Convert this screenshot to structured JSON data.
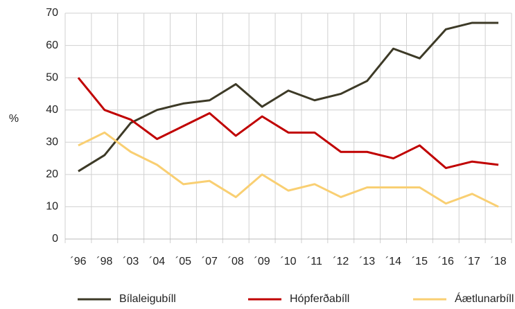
{
  "chart_data": {
    "type": "line",
    "y_label": "%",
    "categories": [
      "´96",
      "´98",
      "´03",
      "´04",
      "´05",
      "´07",
      "´08",
      "´09",
      "´10",
      "´11",
      "´12",
      "´13",
      "´14",
      "´15",
      "´16",
      "´17",
      "´18"
    ],
    "series": [
      {
        "name": "Bílaleigubíll",
        "color": "#3d3a27",
        "values": [
          21,
          26,
          36,
          40,
          42,
          43,
          48,
          41,
          46,
          43,
          45,
          49,
          59,
          56,
          65,
          67,
          67
        ]
      },
      {
        "name": "Hópferðabíll",
        "color": "#c00000",
        "values": [
          50,
          40,
          37,
          31,
          35,
          39,
          32,
          38,
          33,
          33,
          27,
          27,
          25,
          29,
          22,
          24,
          23
        ]
      },
      {
        "name": "Áætlunarbíll",
        "color": "#f9cf72",
        "values": [
          29,
          33,
          27,
          23,
          17,
          18,
          13,
          20,
          15,
          17,
          13,
          16,
          16,
          16,
          11,
          14,
          10
        ]
      }
    ],
    "ylim": [
      0,
      70
    ],
    "yticks": [
      0,
      10,
      20,
      30,
      40,
      50,
      60,
      70
    ],
    "grid": true,
    "legend": "bottom"
  }
}
